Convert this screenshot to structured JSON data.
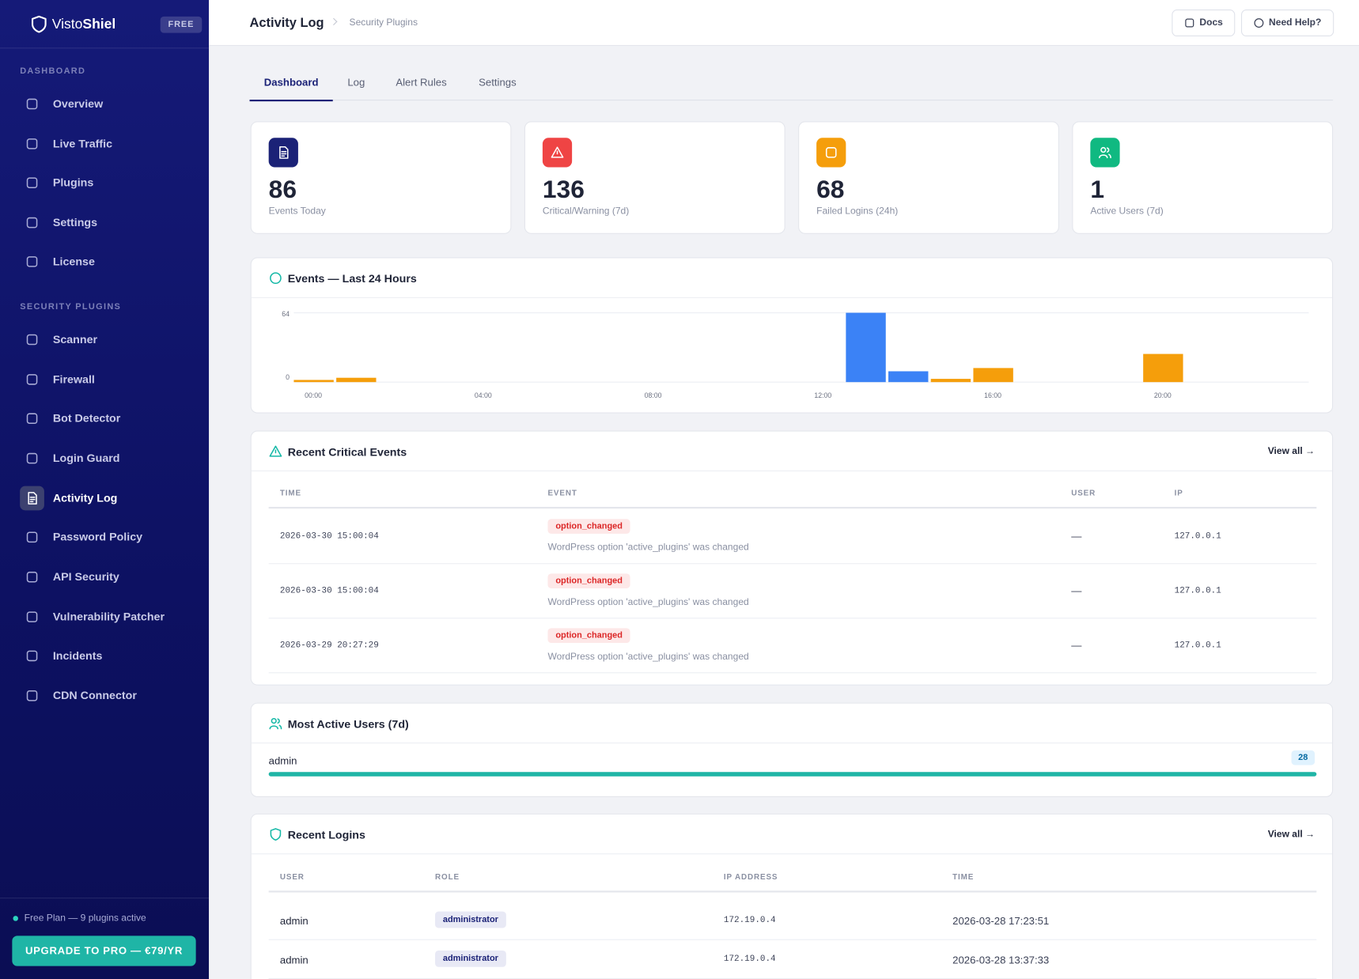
{
  "sidebar": {
    "brand": [
      "Visto",
      "Shiel"
    ],
    "badge": "FREE",
    "sections": [
      {
        "title": "DASHBOARD",
        "items": [
          "Overview",
          "Live Traffic",
          "Plugins",
          "Settings",
          "License"
        ]
      },
      {
        "title": "SECURITY PLUGINS",
        "items": [
          "Scanner",
          "Firewall",
          "Bot Detector",
          "Login Guard",
          "Activity Log",
          "Password Policy",
          "API Security",
          "Vulnerability Patcher",
          "Incidents",
          "CDN Connector"
        ]
      }
    ],
    "active": "Activity Log",
    "plan": "Free Plan — 9 plugins active",
    "upgrade": "UPGRADE TO PRO — €79/YR"
  },
  "header": {
    "title": "Activity Log",
    "breadcrumb": "Security Plugins",
    "buttons": [
      "Docs",
      "Need Help?"
    ]
  },
  "tabs": {
    "items": [
      "Dashboard",
      "Log",
      "Alert Rules",
      "Settings"
    ],
    "active": 0
  },
  "stats": [
    {
      "value": 86,
      "label": "Events Today",
      "color": "#1b2277"
    },
    {
      "value": 136,
      "label": "Critical/Warning (7d)",
      "color": "#ef4444"
    },
    {
      "value": 68,
      "label": "Failed Logins (24h)",
      "color": "#f59e0b"
    },
    {
      "value": 1,
      "label": "Active Users (7d)",
      "color": "#10b981"
    }
  ],
  "chart_data": {
    "type": "bar",
    "title": "Events — Last 24 Hours",
    "categories": [
      "00:00",
      null,
      null,
      null,
      "04:00",
      null,
      null,
      null,
      "08:00",
      null,
      null,
      null,
      "12:00",
      null,
      null,
      null,
      "16:00",
      null,
      null,
      null,
      "20:00",
      null,
      null,
      null
    ],
    "values": [
      2,
      4,
      0,
      0,
      0,
      0,
      0,
      0,
      0,
      0,
      0,
      0,
      0,
      64,
      10,
      3,
      13,
      0,
      0,
      0,
      26,
      0,
      0,
      0
    ],
    "colors": [
      "#f59e0b",
      "#f59e0b",
      "#f59e0b",
      "#f59e0b",
      "#f59e0b",
      "#f59e0b",
      "#f59e0b",
      "#f59e0b",
      "#f59e0b",
      "#f59e0b",
      "#f59e0b",
      "#f59e0b",
      "#f59e0b",
      "#3b82f6",
      "#3b82f6",
      "#f59e0b",
      "#f59e0b",
      "#f59e0b",
      "#f59e0b",
      "#f59e0b",
      "#f59e0b",
      "#f59e0b",
      "#f59e0b",
      "#f59e0b"
    ],
    "ylim": [
      0,
      64
    ],
    "yticks": [
      0,
      64
    ],
    "grid": true
  },
  "critical": {
    "title": "Recent Critical Events",
    "link": "View all →",
    "columns": [
      "TIME",
      "EVENT",
      "USER",
      "IP"
    ],
    "rows": [
      {
        "time": "2026-03-30 15:00:04",
        "event": "option_changed",
        "detail": "WordPress option 'active_plugins' was changed",
        "user": "—",
        "ip": "127.0.0.1"
      },
      {
        "time": "2026-03-30 15:00:04",
        "event": "option_changed",
        "detail": "WordPress option 'active_plugins' was changed",
        "user": "—",
        "ip": "127.0.0.1"
      },
      {
        "time": "2026-03-29 20:27:29",
        "event": "option_changed",
        "detail": "WordPress option 'active_plugins' was changed",
        "user": "—",
        "ip": "127.0.0.1"
      }
    ]
  },
  "users": {
    "title": "Most Active Users (7d)",
    "rows": [
      {
        "name": "admin",
        "count": 28
      }
    ]
  },
  "logins": {
    "title": "Recent Logins",
    "link": "View all →",
    "columns": [
      "USER",
      "ROLE",
      "IP ADDRESS",
      "TIME"
    ],
    "rows": [
      [
        "admin",
        "administrator",
        "172.19.0.4",
        "2026-03-28 17:23:51"
      ],
      [
        "admin",
        "administrator",
        "172.19.0.4",
        "2026-03-28 13:37:33"
      ]
    ]
  }
}
